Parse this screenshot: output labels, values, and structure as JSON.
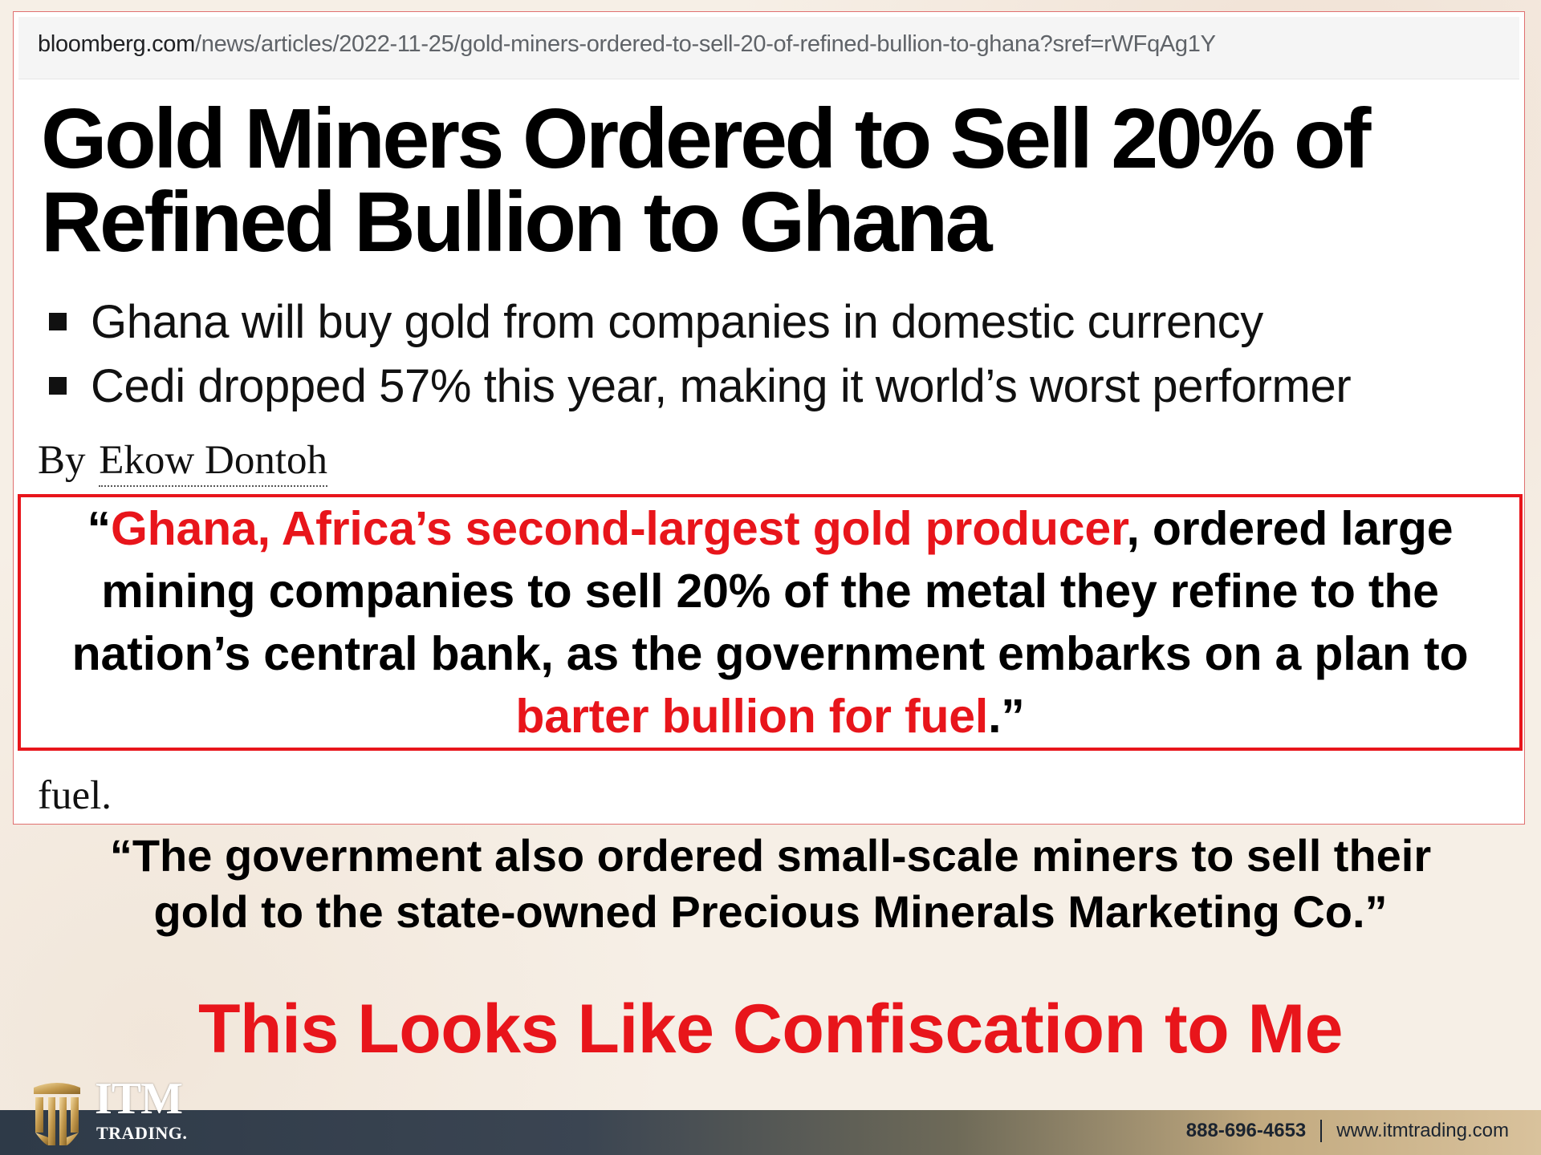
{
  "browser": {
    "url_domain": "bloomberg.com",
    "url_path": "/news/articles/2022-11-25/gold-miners-ordered-to-sell-20-of-refined-bullion-to-ghana?sref=rWFqAg1Y"
  },
  "article": {
    "headline_line1": "Gold Miners Ordered to Sell 20% of",
    "headline_line2": "Refined Bullion to Ghana",
    "bullets": [
      "Ghana will buy gold from companies in domestic currency",
      "Cedi dropped 57% this year, making it world’s worst performer"
    ],
    "byline_prefix": "By",
    "author": "Ekow Dontoh",
    "trailing_word": "fuel."
  },
  "quote": {
    "open_mark": "“",
    "highlight1": "Ghana, Africa’s second-largest gold producer",
    "middle": ", ordered large mining companies to sell 20% of the metal they refine to the nation’s central bank, as the government embarks on a plan to ",
    "highlight2": "barter bullion for fuel",
    "close": ".”"
  },
  "second_quote": {
    "line1": "“The government also ordered small-scale miners to sell their",
    "line2": "gold to the state-owned Precious Minerals Marketing Co.”"
  },
  "callout": "This Looks Like Confiscation to Me",
  "footer": {
    "logo_main": "ITM",
    "logo_sub": "TRADING.",
    "phone": "888-696-4653",
    "website": "www.itmtrading.com"
  },
  "colors": {
    "accent_red": "#e8151b",
    "footer_dark": "#2e3a48",
    "footer_gold": "#d9c29c"
  },
  "icons": {
    "logo": "columns-temple-icon"
  }
}
